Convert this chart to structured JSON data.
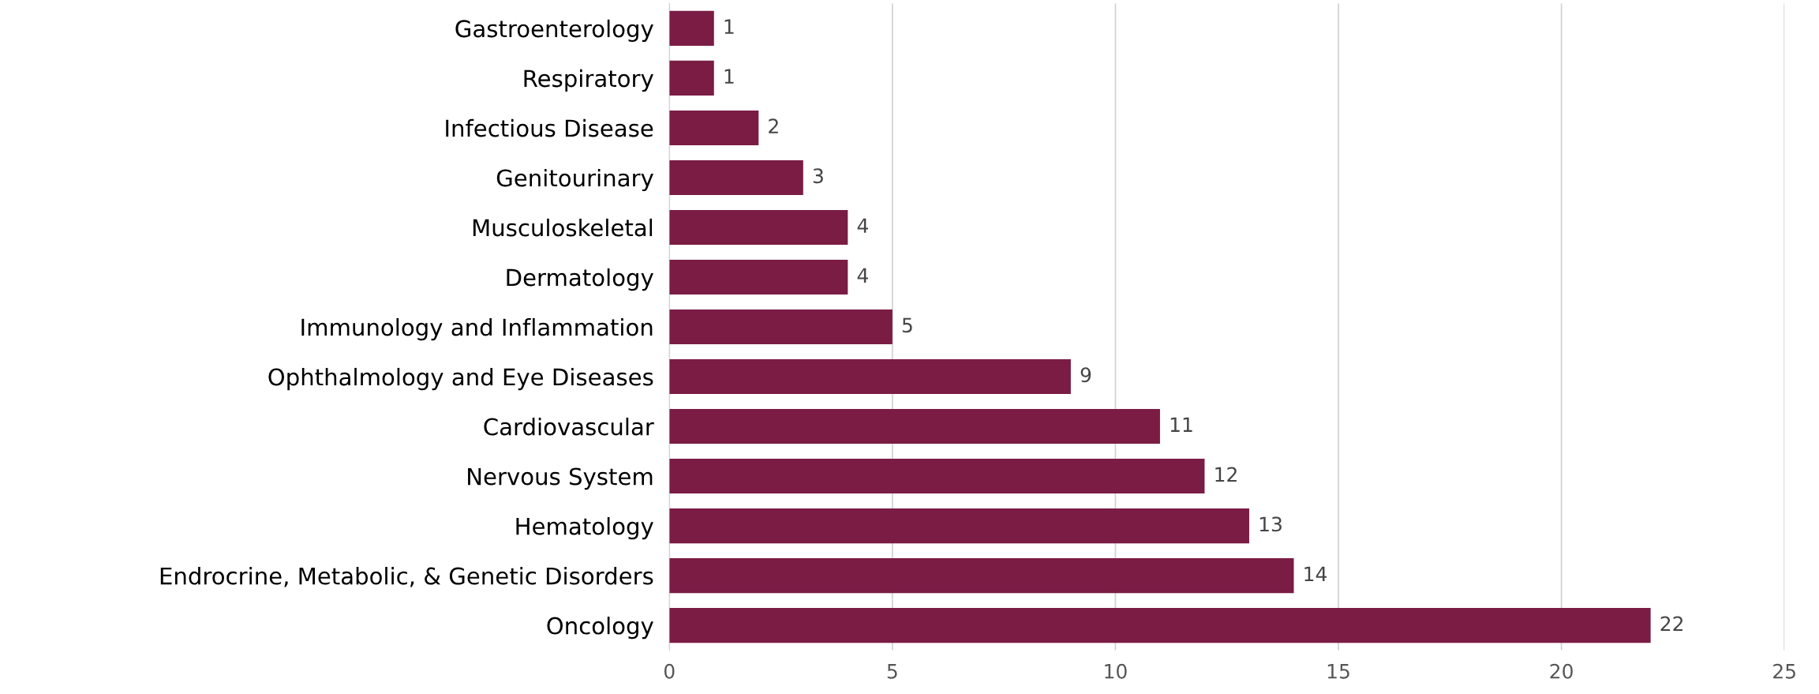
{
  "chart_data": {
    "type": "bar",
    "orientation": "horizontal",
    "categories": [
      "Gastroenterology",
      "Respiratory",
      "Infectious Disease",
      "Genitourinary",
      "Musculoskeletal",
      "Dermatology",
      "Immunology and Inflammation",
      "Ophthalmology and Eye Diseases",
      "Cardiovascular",
      "Nervous System",
      "Hematology",
      "Endrocrine, Metabolic, & Genetic Disorders",
      "Oncology"
    ],
    "values": [
      1,
      1,
      2,
      3,
      4,
      4,
      5,
      9,
      11,
      12,
      13,
      14,
      22
    ],
    "color": "#7b1c45",
    "xlim": [
      0,
      25
    ],
    "xticks": [
      0,
      5,
      10,
      15,
      20,
      25
    ],
    "grid": "x",
    "data_labels": true,
    "legend": false
  }
}
